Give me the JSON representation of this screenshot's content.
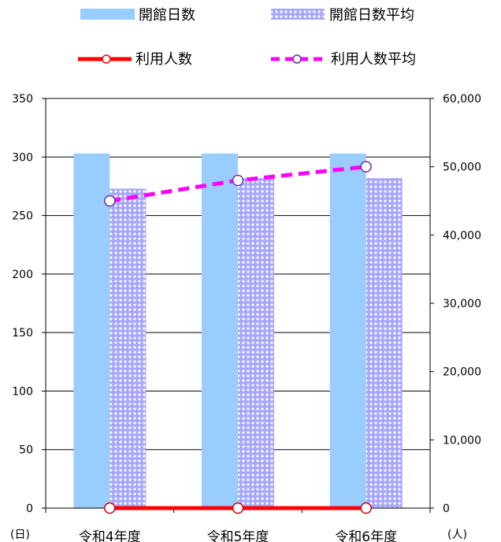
{
  "chart_data": {
    "type": "bar",
    "categories": [
      "令和4年度",
      "令和5年度",
      "令和6年度"
    ],
    "series": [
      {
        "name": "開館日数",
        "type": "bar",
        "axis": "left",
        "values": [
          303,
          303,
          303
        ],
        "color": "#99ccff"
      },
      {
        "name": "開館日数平均",
        "type": "bar",
        "axis": "left",
        "values": [
          273,
          282,
          282
        ],
        "color": "#9999ff",
        "pattern": "dotted"
      },
      {
        "name": "利用人数",
        "type": "line",
        "axis": "right",
        "values": [
          0,
          0,
          0
        ],
        "color": "#ff0000"
      },
      {
        "name": "利用人数平均",
        "type": "line",
        "axis": "right",
        "values": [
          45000,
          48000,
          50000
        ],
        "color": "#ff00ff",
        "dashed": true
      }
    ],
    "y_left": {
      "min": 0,
      "max": 350,
      "ticks": [
        0,
        50,
        100,
        150,
        200,
        250,
        300,
        350
      ],
      "tick_labels": [
        "0",
        "50",
        "100",
        "150",
        "200",
        "250",
        "300",
        "350"
      ],
      "unit_label": "(日)"
    },
    "y_right": {
      "min": 0,
      "max": 60000,
      "ticks": [
        0,
        10000,
        20000,
        30000,
        40000,
        50000,
        60000
      ],
      "tick_labels": [
        "0",
        "10,000",
        "20,000",
        "30,000",
        "40,000",
        "50,000",
        "60,000"
      ],
      "unit_label": "(人)"
    },
    "grid": true,
    "legend_position": "top"
  }
}
